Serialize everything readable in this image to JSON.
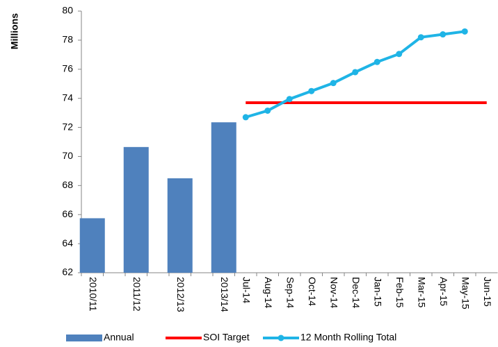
{
  "chart_data": {
    "type": "bar",
    "y_label": "Millions",
    "categories": [
      "2010/11",
      null,
      "2011/12",
      null,
      "2012/13",
      null,
      "2013/14",
      "Jul-14",
      "Aug-14",
      "Sep-14",
      "Oct-14",
      "Nov-14",
      "Dec-14",
      "Jan-15",
      "Feb-15",
      "Mar-15",
      "Apr-15",
      "May-15",
      "Jun-15"
    ],
    "series": [
      {
        "name": "Annual",
        "type": "bar",
        "color": "#4f81bd",
        "values": [
          65.75,
          null,
          70.65,
          null,
          68.5,
          null,
          72.35,
          null,
          null,
          null,
          null,
          null,
          null,
          null,
          null,
          null,
          null,
          null,
          null
        ]
      },
      {
        "name": "SOI Target",
        "type": "line",
        "color": "#ff0000",
        "values": [
          null,
          null,
          null,
          null,
          null,
          null,
          null,
          73.7,
          73.7,
          73.7,
          73.7,
          73.7,
          73.7,
          73.7,
          73.7,
          73.7,
          73.7,
          73.7,
          73.7
        ]
      },
      {
        "name": "12 Month Rolling Total",
        "type": "line",
        "color": "#1fb4e6",
        "markers": true,
        "values": [
          null,
          null,
          null,
          null,
          null,
          null,
          null,
          72.7,
          73.15,
          73.95,
          74.5,
          75.05,
          75.8,
          76.5,
          77.05,
          78.2,
          78.4,
          78.6,
          null
        ]
      }
    ],
    "ylim": [
      62,
      80
    ],
    "yticks": [
      62,
      64,
      66,
      68,
      70,
      72,
      74,
      76,
      78,
      80
    ],
    "grid": false
  }
}
